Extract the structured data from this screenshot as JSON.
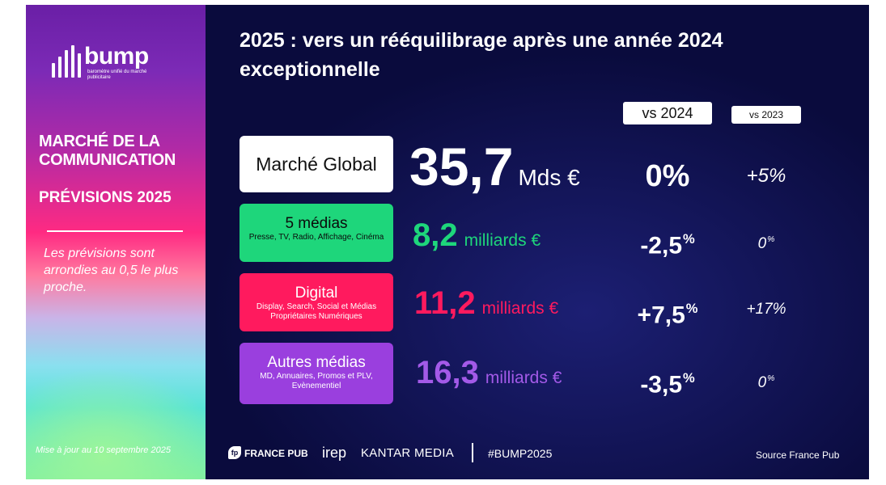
{
  "sidebar": {
    "logo_word": "bump",
    "logo_subtitle": "baromètre unifié du marché publicitaire",
    "title_line1": "MARCHÉ DE LA",
    "title_line2": "COMMUNICATION",
    "subtitle": "PRÉVISIONS 2025",
    "note": "Les prévisions sont arrondies au 0,5 le plus proche.",
    "update": "Mise à jour au 10 septembre 2025"
  },
  "main": {
    "title": "2025 : vers un rééquilibrage après une année 2024 exceptionnelle",
    "col_vs2024": "vs 2024",
    "col_vs2023": "vs 2023",
    "rows": {
      "global": {
        "name": "Marché Global",
        "value": "35,7",
        "unit": "Mds €",
        "vs2024": "0%",
        "vs2023": "+5%"
      },
      "media5": {
        "name": "5 médias",
        "desc": "Presse, TV, Radio, Affichage, Cinéma",
        "value": "8,2",
        "unit": "milliards €",
        "vs2024": "-2,5",
        "vs2023": "0"
      },
      "digital": {
        "name": "Digital",
        "desc": "Display, Search, Social et Médias Propriétaires Numériques",
        "value": "11,2",
        "unit": "milliards €",
        "vs2024": "+7,5",
        "vs2023": "+17%"
      },
      "autres": {
        "name": "Autres médias",
        "desc": "MD, Annuaires, Promos et PLV, Evènementiel",
        "value": "16,3",
        "unit": "milliards €",
        "vs2024": "-3,5",
        "vs2023": "0"
      }
    },
    "percent_sign": "%"
  },
  "footer": {
    "fp_icon_text": "fp",
    "france_pub": "FRANCE PUB",
    "irep": "irep",
    "kantar": "KANTAR MEDIA",
    "hashtag": "#BUMP2025",
    "source": "Source France Pub"
  },
  "colors": {
    "background": "#0a0b3d",
    "green": "#1ed67b",
    "pink": "#ff1a5e",
    "purple": "#9a3fde"
  }
}
